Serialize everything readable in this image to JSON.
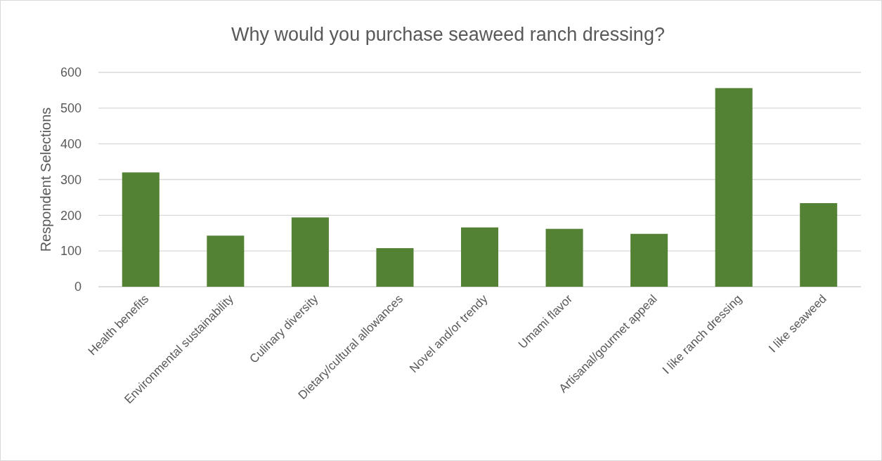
{
  "chart_data": {
    "type": "bar",
    "title": "Why would you purchase seaweed ranch dressing?",
    "ylabel": "Respondent Selections",
    "categories": [
      "Health benefits",
      "Environmental sustainability",
      "Culinary diversity",
      "Dietary/cultural allowances",
      "Novel and/or trendy",
      "Umami flavor",
      "Artisanal/gourmet appeal",
      "I like ranch dressing",
      "I like seaweed"
    ],
    "values": [
      320,
      143,
      194,
      108,
      166,
      162,
      148,
      556,
      234
    ],
    "color": "#548235",
    "ylim": [
      0,
      600
    ],
    "yticks": [
      0,
      100,
      200,
      300,
      400,
      500,
      600
    ],
    "grid": "y"
  }
}
